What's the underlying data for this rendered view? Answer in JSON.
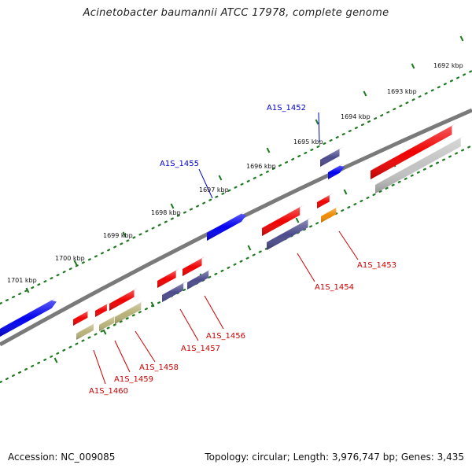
{
  "title": "Acinetobacter baumannii ATCC 17978, complete genome",
  "footer": {
    "accession_label": "Accession:",
    "accession": "NC_009085",
    "topology_label": "Topology:",
    "topology": "circular",
    "length_label": "Length:",
    "length": "3,976,747 bp",
    "genes_label": "Genes:",
    "genes": "3,435"
  },
  "colors": {
    "backbone": "#7a7a7a",
    "ruler": "#1f7a1f",
    "label_forward": "#0000cc",
    "label_reverse": "#cc0000",
    "cds_forward": "#0000ee",
    "cds_reverse": "#ee0000",
    "feature_slate": "#4b4a8c",
    "feature_olive": "#b8b27a",
    "feature_orange": "#f08a00",
    "feature_gray": "#c2c2c2"
  },
  "ruler_labels": [
    {
      "kbp": 1692,
      "text": "1692 kbp"
    },
    {
      "kbp": 1693,
      "text": "1693 kbp"
    },
    {
      "kbp": 1694,
      "text": "1694 kbp"
    },
    {
      "kbp": 1695,
      "text": "1695 kbp"
    },
    {
      "kbp": 1696,
      "text": "1696 kbp"
    },
    {
      "kbp": 1697,
      "text": "1697 kbp"
    },
    {
      "kbp": 1698,
      "text": "1698 kbp"
    },
    {
      "kbp": 1699,
      "text": "1699 kbp"
    },
    {
      "kbp": 1700,
      "text": "1700 kbp"
    },
    {
      "kbp": 1701,
      "text": "1701 kbp"
    }
  ],
  "gene_labels": [
    {
      "id": "A1S_1452",
      "strand": "forward"
    },
    {
      "id": "A1S_1455",
      "strand": "forward"
    },
    {
      "id": "A1S_1453",
      "strand": "reverse"
    },
    {
      "id": "A1S_1454",
      "strand": "reverse"
    },
    {
      "id": "A1S_1456",
      "strand": "reverse"
    },
    {
      "id": "A1S_1457",
      "strand": "reverse"
    },
    {
      "id": "A1S_1458",
      "strand": "reverse"
    },
    {
      "id": "A1S_1459",
      "strand": "reverse"
    },
    {
      "id": "A1S_1460",
      "strand": "reverse"
    }
  ]
}
